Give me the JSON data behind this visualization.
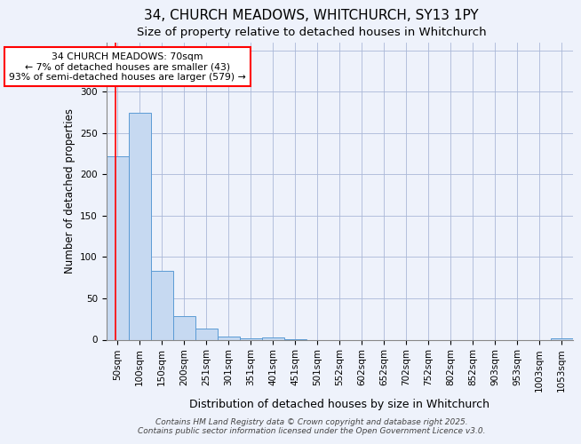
{
  "title_line1": "34, CHURCH MEADOWS, WHITCHURCH, SY13 1PY",
  "title_line2": "Size of property relative to detached houses in Whitchurch",
  "xlabel": "Distribution of detached houses by size in Whitchurch",
  "ylabel": "Number of detached properties",
  "bar_labels": [
    "50sqm",
    "100sqm",
    "150sqm",
    "200sqm",
    "251sqm",
    "301sqm",
    "351sqm",
    "401sqm",
    "451sqm",
    "501sqm",
    "552sqm",
    "602sqm",
    "652sqm",
    "702sqm",
    "752sqm",
    "802sqm",
    "852sqm",
    "903sqm",
    "953sqm",
    "1003sqm",
    "1053sqm"
  ],
  "bar_values": [
    222,
    275,
    83,
    29,
    13,
    4,
    2,
    3,
    1,
    0,
    0,
    0,
    0,
    0,
    0,
    0,
    0,
    0,
    0,
    0,
    2
  ],
  "bar_color": "#c6d9f1",
  "bar_edge_color": "#5b9bd5",
  "annotation_box_text": "34 CHURCH MEADOWS: 70sqm\n← 7% of detached houses are smaller (43)\n93% of semi-detached houses are larger (579) →",
  "red_line_x": -0.08,
  "ylim": [
    0,
    360
  ],
  "yticks": [
    0,
    50,
    100,
    150,
    200,
    250,
    300,
    350
  ],
  "background_color": "#eef2fb",
  "plot_bg_color": "#eef2fb",
  "footer_text": "Contains HM Land Registry data © Crown copyright and database right 2025.\nContains public sector information licensed under the Open Government Licence v3.0.",
  "title_fontsize": 11,
  "subtitle_fontsize": 9.5,
  "xlabel_fontsize": 9,
  "ylabel_fontsize": 8.5,
  "annot_fontsize": 7.8,
  "tick_fontsize": 7.5,
  "footer_fontsize": 6.5
}
